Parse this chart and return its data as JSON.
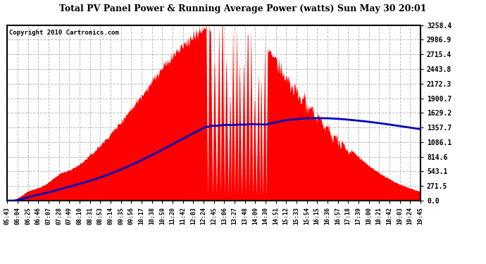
{
  "title": "Total PV Panel Power & Running Average Power (watts) Sun May 30 20:01",
  "copyright": "Copyright 2010 Cartronics.com",
  "background_color": "#ffffff",
  "y_max": 3258.4,
  "y_ticks": [
    0.0,
    271.5,
    543.1,
    814.6,
    1086.1,
    1357.7,
    1629.2,
    1900.7,
    2172.3,
    2443.8,
    2715.4,
    2986.9,
    3258.4
  ],
  "x_labels": [
    "05:43",
    "06:04",
    "06:25",
    "06:46",
    "07:07",
    "07:28",
    "07:49",
    "08:10",
    "08:31",
    "08:53",
    "09:14",
    "09:35",
    "09:56",
    "10:17",
    "10:38",
    "10:59",
    "11:20",
    "11:42",
    "12:03",
    "12:24",
    "12:45",
    "13:06",
    "13:27",
    "13:48",
    "14:09",
    "14:30",
    "14:51",
    "15:12",
    "15:33",
    "15:54",
    "16:15",
    "16:36",
    "16:57",
    "17:18",
    "17:39",
    "18:00",
    "18:21",
    "18:42",
    "19:03",
    "19:24",
    "19:45"
  ],
  "fill_color": "#ff0000",
  "line_color": "#0000bb",
  "grid_color": "#bbbbbb",
  "border_color": "#000000"
}
